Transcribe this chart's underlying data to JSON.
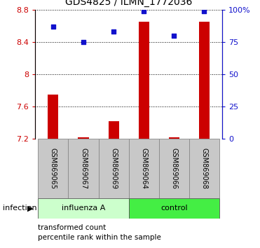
{
  "title": "GDS4825 / ILMN_1772036",
  "samples": [
    "GSM869065",
    "GSM869067",
    "GSM869069",
    "GSM869064",
    "GSM869066",
    "GSM869068"
  ],
  "red_values": [
    7.75,
    7.22,
    7.42,
    8.65,
    7.22,
    8.65
  ],
  "blue_values": [
    87,
    75,
    83,
    99,
    80,
    99
  ],
  "ymin": 7.2,
  "ymax": 8.8,
  "y2min": 0,
  "y2max": 100,
  "yticks": [
    7.2,
    7.6,
    8.0,
    8.4,
    8.8
  ],
  "ytick_labels": [
    "7.2",
    "7.6",
    "8",
    "8.4",
    "8.8"
  ],
  "y2ticks": [
    0,
    25,
    50,
    75,
    100
  ],
  "y2ticklabels": [
    "0",
    "25",
    "50",
    "75",
    "100%"
  ],
  "groups": [
    {
      "label": "influenza A",
      "start": 0,
      "end": 3
    },
    {
      "label": "control",
      "start": 3,
      "end": 6
    }
  ],
  "group_label": "infection",
  "bar_color": "#cc0000",
  "dot_color": "#1111cc",
  "bar_width": 0.35,
  "legend_red": "transformed count",
  "legend_blue": "percentile rank within the sample",
  "title_fontsize": 10,
  "tick_color_left": "#cc0000",
  "tick_color_right": "#1111cc",
  "sample_bg_color": "#c8c8c8",
  "group_bg_influenza": "#ccffcc",
  "group_bg_control": "#44ee44"
}
